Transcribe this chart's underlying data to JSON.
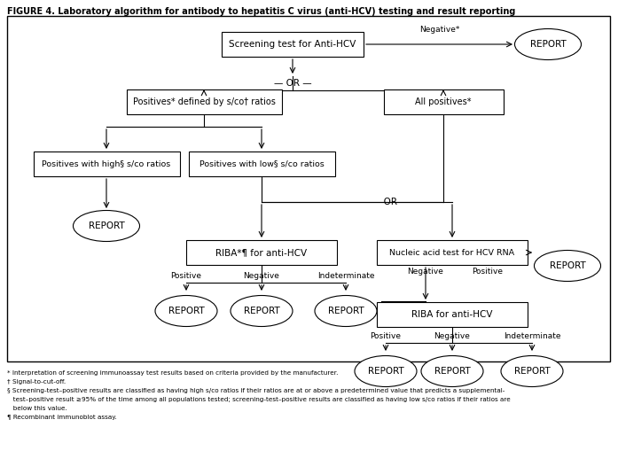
{
  "title": "FIGURE 4. Laboratory algorithm for antibody to hepatitis C virus (anti-HCV) testing and result reporting",
  "footnote_lines": [
    "* Interpretation of screening immunoassay test results based on criteria provided by the manufacturer.",
    "† Signal-to-cut-off.",
    "§ Screening-test–positive results are classified as having high s/co ratios if their ratios are at or above a predetermined value that predicts a supplemental-",
    "   test–positive result ≥95% of the time among all populations tested; screening-test–positive results are classified as having low s/co ratios if their ratios are",
    "   below this value.",
    "¶ Recombinant immunoblot assay."
  ],
  "bg_color": "#ffffff",
  "border_color": "#000000",
  "text_color": "#000000"
}
